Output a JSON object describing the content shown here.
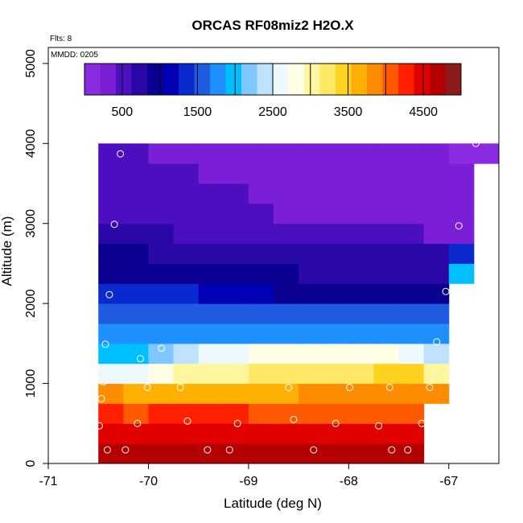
{
  "chart_data": {
    "type": "heatmap",
    "title": "ORCAS RF08miz2 H2O.X",
    "annotations": [
      "Flts: 8",
      "MMDD: 0205"
    ],
    "xlabel": "Latitude (deg N)",
    "ylabel": "Altitude (m)",
    "xlim": [
      -71,
      -66.5
    ],
    "ylim": [
      0,
      5200
    ],
    "x_ticks": [
      -71,
      -70,
      -69,
      -68,
      -67
    ],
    "y_ticks": [
      0,
      1000,
      2000,
      3000,
      4000,
      5000
    ],
    "colorbar": {
      "range": [
        0,
        5000
      ],
      "tick_values": [
        500,
        1500,
        2500,
        3500,
        4500
      ],
      "tick_labels": [
        "500",
        "1500",
        "2500",
        "3500",
        "4500"
      ],
      "colors": [
        "#8a2be2",
        "#7a1fd6",
        "#4b0fbf",
        "#2a08a8",
        "#0a0091",
        "#0000b4",
        "#0a2ad0",
        "#1f5ae0",
        "#1e90ff",
        "#00bfff",
        "#7ec8ff",
        "#bfe3ff",
        "#eef8ff",
        "#ffffe6",
        "#fff7a0",
        "#ffe866",
        "#ffd21f",
        "#ffb000",
        "#ff8c00",
        "#ff5a00",
        "#ff2000",
        "#e00000",
        "#b40000",
        "#8b1a1a"
      ]
    },
    "cell_lat_edges": [
      -70.5,
      -70.25,
      -70.0,
      -69.75,
      -69.5,
      -69.25,
      -69.0,
      -68.75,
      -68.5,
      -68.25,
      -68.0,
      -67.75,
      -67.5,
      -67.25,
      -67.0,
      -66.75,
      -66.5
    ],
    "alt_bin_size": 250,
    "rows": [
      {
        "alt": 0,
        "values": [
          4600,
          4600,
          4650,
          4650,
          4650,
          4700,
          4700,
          4700,
          4700,
          4700,
          4700,
          4700,
          4700,
          null,
          null,
          null
        ]
      },
      {
        "alt": 250,
        "values": [
          4450,
          4450,
          4450,
          4450,
          4450,
          4450,
          4450,
          4450,
          4450,
          4450,
          4450,
          4450,
          4450,
          null,
          null,
          null
        ]
      },
      {
        "alt": 500,
        "values": [
          4200,
          4150,
          4300,
          4200,
          4200,
          4200,
          4150,
          4150,
          4150,
          4150,
          4150,
          4150,
          4150,
          null,
          null,
          null
        ]
      },
      {
        "alt": 750,
        "values": [
          3900,
          3650,
          3700,
          3650,
          3650,
          3650,
          3650,
          3650,
          3750,
          3800,
          3750,
          3800,
          3850,
          3850,
          null,
          null
        ]
      },
      {
        "alt": 1000,
        "values": [
          2500,
          2700,
          2900,
          2950,
          2950,
          3000,
          3150,
          3200,
          3250,
          3300,
          3300,
          3400,
          3450,
          3100,
          null,
          null
        ]
      },
      {
        "alt": 1250,
        "values": [
          1950,
          1950,
          2200,
          2300,
          2500,
          2600,
          2750,
          2850,
          2900,
          2900,
          2850,
          2800,
          2650,
          2350,
          null,
          null
        ]
      },
      {
        "alt": 1500,
        "values": [
          1800,
          1800,
          1800,
          1800,
          1800,
          1800,
          1800,
          1800,
          1800,
          1800,
          1800,
          1800,
          1800,
          1800,
          null,
          null
        ]
      },
      {
        "alt": 1750,
        "values": [
          1650,
          1650,
          1650,
          1650,
          1650,
          1650,
          1650,
          1650,
          1650,
          1650,
          1650,
          1650,
          1650,
          1650,
          null,
          null
        ]
      },
      {
        "alt": 2000,
        "values": [
          1350,
          1300,
          1300,
          1250,
          1200,
          1150,
          1100,
          1000,
          1000,
          1000,
          1000,
          1000,
          1000,
          1000,
          null,
          null
        ]
      },
      {
        "alt": 2250,
        "values": [
          1000,
          1000,
          1000,
          1000,
          1000,
          950,
          900,
          850,
          800,
          800,
          800,
          800,
          800,
          800,
          1900,
          null
        ]
      },
      {
        "alt": 2500,
        "values": [
          850,
          850,
          800,
          800,
          750,
          700,
          700,
          700,
          650,
          650,
          650,
          650,
          650,
          750,
          1250,
          null
        ]
      },
      {
        "alt": 2750,
        "values": [
          700,
          650,
          650,
          600,
          600,
          550,
          550,
          550,
          550,
          500,
          500,
          450,
          450,
          400,
          350,
          null
        ]
      },
      {
        "alt": 3000,
        "values": [
          550,
          500,
          500,
          500,
          450,
          450,
          450,
          400,
          400,
          400,
          350,
          350,
          350,
          350,
          300,
          null
        ]
      },
      {
        "alt": 3250,
        "values": [
          500,
          500,
          450,
          450,
          450,
          450,
          400,
          400,
          400,
          350,
          350,
          350,
          300,
          300,
          300,
          null
        ]
      },
      {
        "alt": 3500,
        "values": [
          500,
          500,
          450,
          450,
          400,
          400,
          400,
          350,
          350,
          350,
          300,
          300,
          300,
          300,
          250,
          null
        ]
      },
      {
        "alt": 3750,
        "values": [
          450,
          450,
          400,
          400,
          400,
          350,
          350,
          350,
          300,
          300,
          300,
          250,
          250,
          250,
          200,
          150
        ]
      }
    ],
    "obs_points": [
      {
        "lat": -70.28,
        "alt": 3870
      },
      {
        "lat": -70.34,
        "alt": 2990
      },
      {
        "lat": -70.39,
        "alt": 2110
      },
      {
        "lat": -70.43,
        "alt": 1490
      },
      {
        "lat": -70.45,
        "alt": 1020
      },
      {
        "lat": -70.47,
        "alt": 810
      },
      {
        "lat": -70.49,
        "alt": 470
      },
      {
        "lat": -70.41,
        "alt": 170
      },
      {
        "lat": -70.23,
        "alt": 170
      },
      {
        "lat": -70.08,
        "alt": 1310
      },
      {
        "lat": -69.87,
        "alt": 1440
      },
      {
        "lat": -70.11,
        "alt": 500
      },
      {
        "lat": -70.01,
        "alt": 950
      },
      {
        "lat": -69.68,
        "alt": 950
      },
      {
        "lat": -69.61,
        "alt": 530
      },
      {
        "lat": -69.41,
        "alt": 170
      },
      {
        "lat": -69.19,
        "alt": 170
      },
      {
        "lat": -69.11,
        "alt": 500
      },
      {
        "lat": -68.95,
        "alt": 1390
      },
      {
        "lat": -68.77,
        "alt": 1430
      },
      {
        "lat": -68.6,
        "alt": 950
      },
      {
        "lat": -68.55,
        "alt": 550
      },
      {
        "lat": -68.35,
        "alt": 170
      },
      {
        "lat": -68.13,
        "alt": 500
      },
      {
        "lat": -67.99,
        "alt": 950
      },
      {
        "lat": -67.85,
        "alt": 1430
      },
      {
        "lat": -67.78,
        "alt": 1320
      },
      {
        "lat": -67.7,
        "alt": 470
      },
      {
        "lat": -67.59,
        "alt": 950
      },
      {
        "lat": -67.57,
        "alt": 170
      },
      {
        "lat": -67.41,
        "alt": 170
      },
      {
        "lat": -67.27,
        "alt": 500
      },
      {
        "lat": -67.19,
        "alt": 950
      },
      {
        "lat": -67.12,
        "alt": 1520
      },
      {
        "lat": -67.03,
        "alt": 2150
      },
      {
        "lat": -66.9,
        "alt": 2970
      },
      {
        "lat": -66.73,
        "alt": 4000
      }
    ]
  }
}
